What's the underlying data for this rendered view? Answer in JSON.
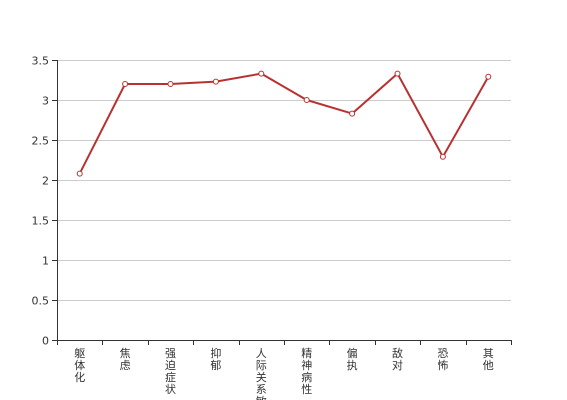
{
  "chart_data": {
    "type": "line",
    "categories": [
      "躯体化",
      "焦虑",
      "强迫症状",
      "抑郁",
      "人际关系敏感",
      "精神病性",
      "偏执",
      "敌对",
      "恐怖",
      "其他"
    ],
    "series": [
      {
        "values": [
          2.08,
          3.2,
          3.2,
          3.23,
          3.33,
          3.0,
          2.83,
          3.33,
          2.29,
          3.29
        ]
      }
    ],
    "y_ticks": [
      "0",
      "0.5",
      "1",
      "1.5",
      "2",
      "2.5",
      "3",
      "3.5"
    ],
    "ylim": [
      0,
      3.5
    ],
    "grid": "horizontal",
    "line_color": "#b83232",
    "gridline_color": "#cccccc",
    "axis_color": "#333333"
  }
}
